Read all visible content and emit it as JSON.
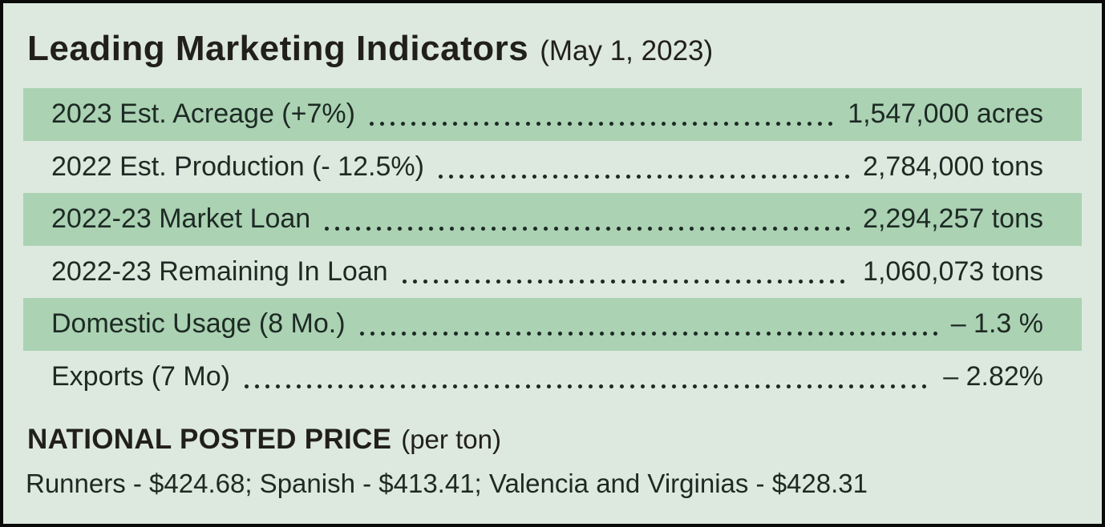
{
  "title": {
    "main": "Leading Marketing Indicators",
    "date": "(May 1, 2023)"
  },
  "indicators": [
    {
      "label": "2023 Est. Acreage (+7%)",
      "value": "1,547,000 acres",
      "highlighted": true
    },
    {
      "label": "2022 Est. Production (- 12.5%)",
      "value": "2,784,000 tons",
      "highlighted": false
    },
    {
      "label": "2022-23 Market Loan",
      "value": "2,294,257 tons",
      "highlighted": true
    },
    {
      "label": "2022-23 Remaining In Loan",
      "value": "1,060,073 tons",
      "highlighted": false
    },
    {
      "label": "Domestic Usage (8 Mo.)",
      "value": "– 1.3 %",
      "highlighted": true
    },
    {
      "label": "Exports (7 Mo)",
      "value": "– 2.82%",
      "highlighted": false
    }
  ],
  "posted_price": {
    "heading": "NATIONAL POSTED PRICE",
    "unit": "(per ton)",
    "prices": "Runners - $424.68; Spanish - $413.41; Valencia and Virginias - $428.31"
  },
  "colors": {
    "background": "#dde9de",
    "stripe": "#abd2b3",
    "text": "#1d2a24",
    "border": "#0a0a0a"
  }
}
